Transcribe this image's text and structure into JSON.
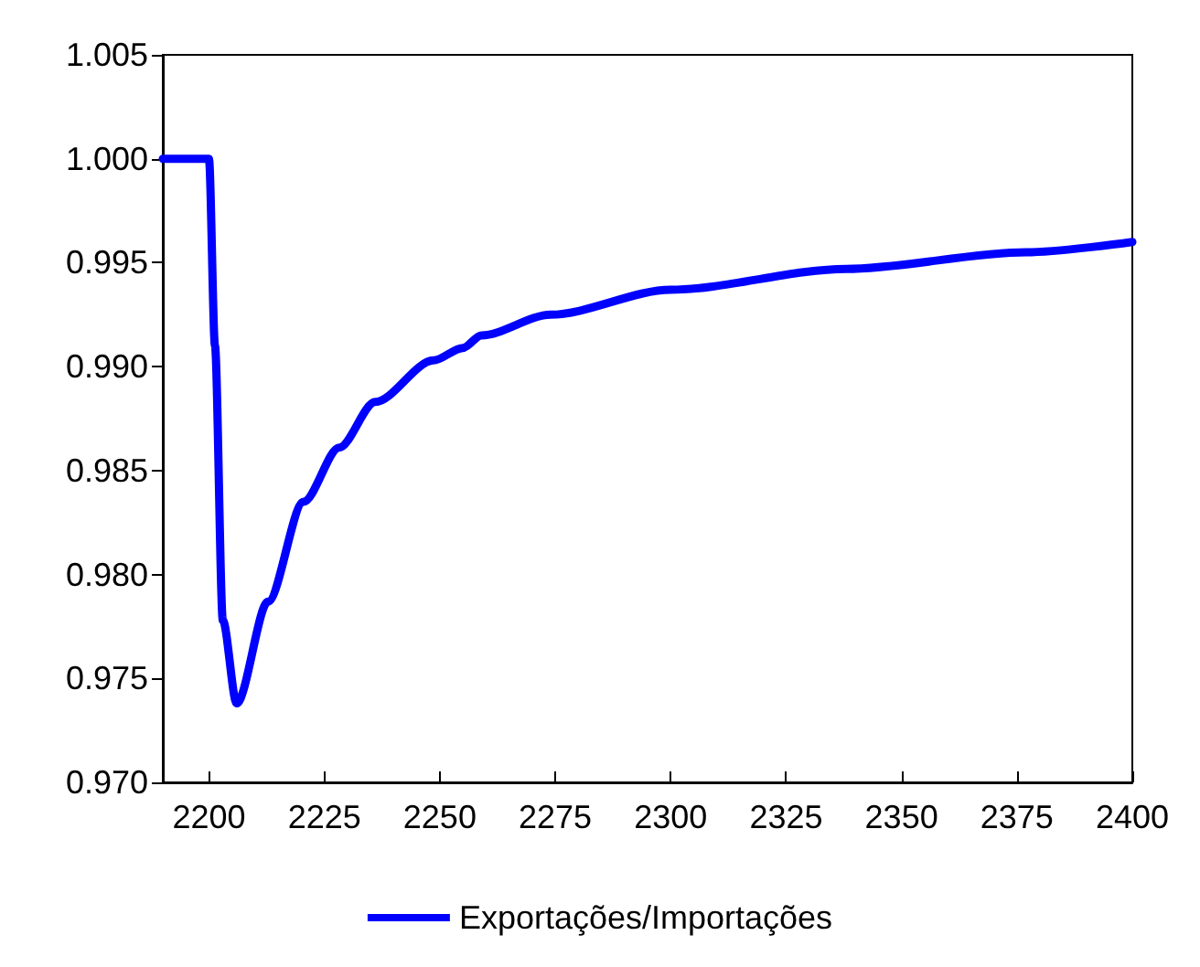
{
  "chart_data": {
    "type": "line",
    "x": [
      2190,
      2200,
      2201.3,
      2203,
      2206,
      2212.8,
      2220.5,
      2228.2,
      2236,
      2248.6,
      2255,
      2259,
      2274,
      2300,
      2338,
      2377,
      2400
    ],
    "series": [
      {
        "name": "Exportações/Importações",
        "color": "#0000ff",
        "values": [
          1.0,
          1.0,
          0.991,
          0.9778,
          0.9738,
          0.9787,
          0.9835,
          0.9861,
          0.9883,
          0.9903,
          0.9909,
          0.9915,
          0.9925,
          0.9937,
          0.9947,
          0.9955,
          0.996
        ]
      }
    ],
    "xlim": [
      2190,
      2400
    ],
    "xticks": [
      2200,
      2225,
      2250,
      2275,
      2300,
      2325,
      2350,
      2375,
      2400
    ],
    "ylim": [
      0.97,
      1.005
    ],
    "yticks": [
      {
        "value": 0.97,
        "label": "0.970"
      },
      {
        "value": 0.975,
        "label": "0.975"
      },
      {
        "value": 0.98,
        "label": "0.980"
      },
      {
        "value": 0.985,
        "label": "0.985"
      },
      {
        "value": 0.99,
        "label": "0.990"
      },
      {
        "value": 0.995,
        "label": "0.995"
      },
      {
        "value": 1.0,
        "label": "1.000"
      },
      {
        "value": 1.005,
        "label": "1.005"
      }
    ],
    "legend": "bottom",
    "grid": false,
    "marker": "none",
    "line_style": "solid"
  }
}
